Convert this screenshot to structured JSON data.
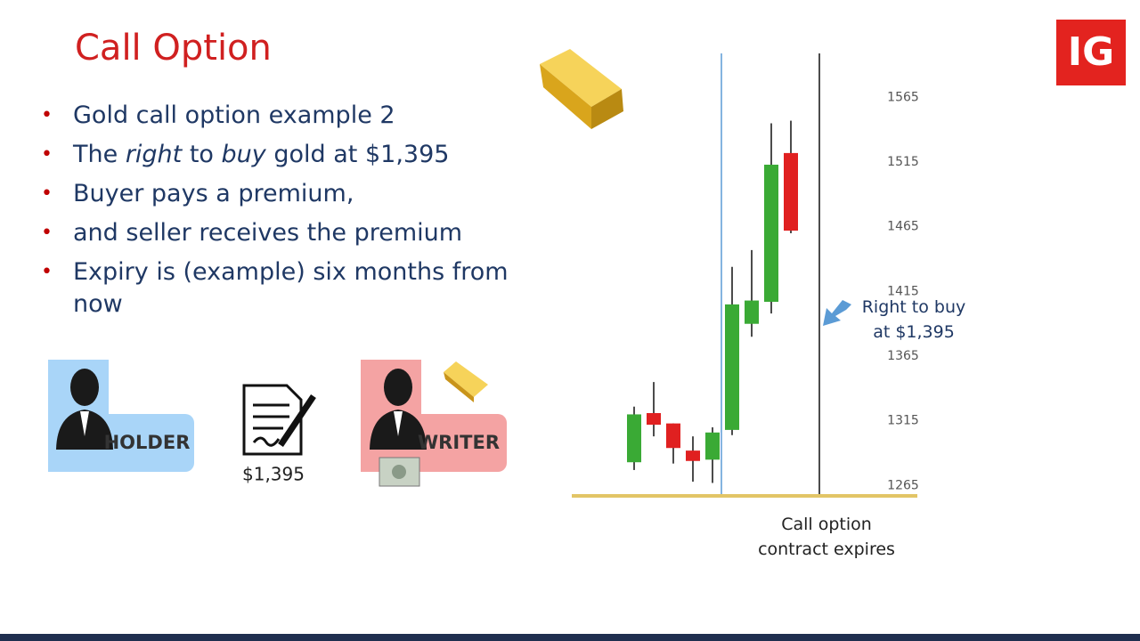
{
  "logo": "IG",
  "title": "Call Option",
  "bullets": [
    [
      "Gold call option example 2"
    ],
    [
      "The ",
      "right",
      " to ",
      "buy",
      " gold at $1,395"
    ],
    [
      "Buyer pays a premium,"
    ],
    [
      "and seller receives the premium"
    ],
    [
      "Expiry is (example) six months from now"
    ]
  ],
  "holder": "HOLDER",
  "contract_price": "$1,395",
  "writer": "WRITER",
  "chart_data": {
    "type": "candlestick",
    "categories": [
      null,
      null,
      null,
      null,
      null,
      null,
      null,
      null,
      null
    ],
    "open": [
      1283,
      1321,
      1313,
      1292,
      1285,
      1308,
      1390,
      1407,
      1522
    ],
    "high": [
      1326,
      1345,
      1313,
      1303,
      1310,
      1434,
      1447,
      1545,
      1547
    ],
    "low": [
      1277,
      1303,
      1282,
      1268,
      1267,
      1304,
      1380,
      1398,
      1460
    ],
    "close": [
      1320,
      1312,
      1294,
      1284,
      1306,
      1405,
      1408,
      1513,
      1462
    ],
    "up_color": "#3aaa35",
    "down_color": "#e02020",
    "ylim": [
      1257,
      1599
    ],
    "yticks": [
      1265,
      1315,
      1365,
      1415,
      1465,
      1515,
      1565
    ],
    "annotations": [
      "Right to buy at $1,395",
      "Call option contract expires"
    ]
  }
}
